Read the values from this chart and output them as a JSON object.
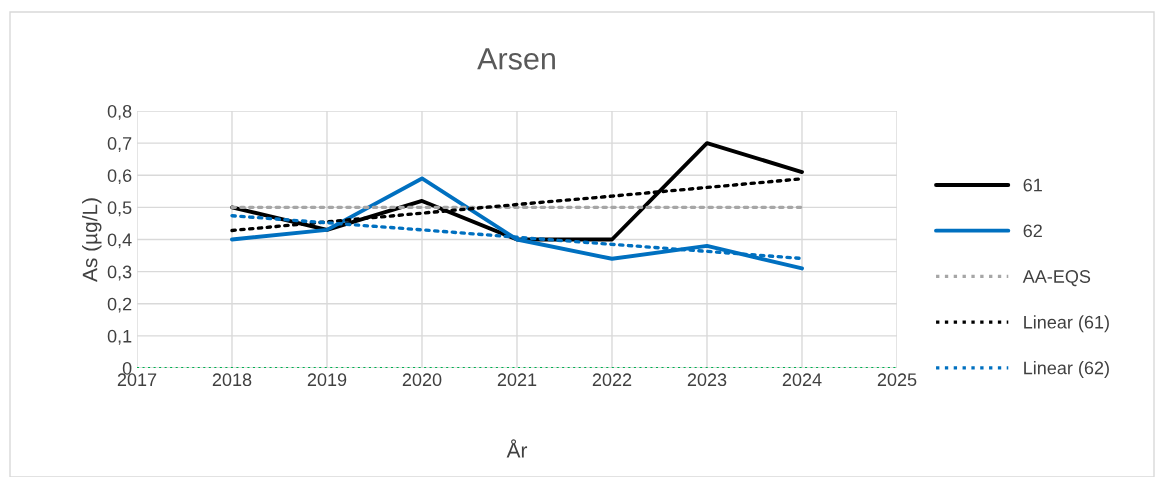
{
  "chart_data": {
    "type": "line",
    "title": "Arsen",
    "xlabel": "År",
    "ylabel": "As (µg/L)",
    "x": [
      2018,
      2019,
      2020,
      2021,
      2022,
      2023,
      2024
    ],
    "series": [
      {
        "name": "61",
        "color": "#000000",
        "values": [
          0.5,
          0.43,
          0.52,
          0.4,
          0.4,
          0.7,
          0.61
        ]
      },
      {
        "name": "62",
        "color": "#0070c0",
        "values": [
          0.4,
          0.43,
          0.59,
          0.4,
          0.34,
          0.38,
          0.31
        ]
      },
      {
        "name": "AA-EQS",
        "color": "#a6a6a6",
        "line_style": "dotted",
        "values": [
          0.5,
          0.5,
          0.5,
          0.5,
          0.5,
          0.5,
          0.5
        ]
      },
      {
        "name": "Linear (61)",
        "color": "#000000",
        "line_style": "dotted",
        "values": [
          0.428,
          0.455,
          0.482,
          0.509,
          0.535,
          0.562,
          0.589
        ]
      },
      {
        "name": "Linear (62)",
        "color": "#0070c0",
        "line_style": "dotted",
        "values": [
          0.474,
          0.452,
          0.43,
          0.407,
          0.385,
          0.363,
          0.341
        ]
      }
    ],
    "ref_lines": [
      {
        "axis": "y",
        "value": 0,
        "color": "#00b050",
        "line_style": "dotted"
      }
    ],
    "xlim": [
      2017,
      2025
    ],
    "xticks": [
      2017,
      2018,
      2019,
      2020,
      2021,
      2022,
      2023,
      2024,
      2025
    ],
    "ylim": [
      0,
      0.8
    ],
    "yticks": [
      0,
      {
        "value": 0.1,
        "label": "0,1"
      },
      {
        "value": 0.2,
        "label": "0,2"
      },
      {
        "value": 0.3,
        "label": "0,3"
      },
      {
        "value": 0.4,
        "label": "0,4"
      },
      {
        "value": 0.5,
        "label": "0,5"
      },
      {
        "value": 0.6,
        "label": "0,6"
      },
      {
        "value": 0.7,
        "label": "0,7"
      },
      {
        "value": 0.8,
        "label": "0,8"
      }
    ],
    "grid": true,
    "legend": "right",
    "marker": "none"
  }
}
